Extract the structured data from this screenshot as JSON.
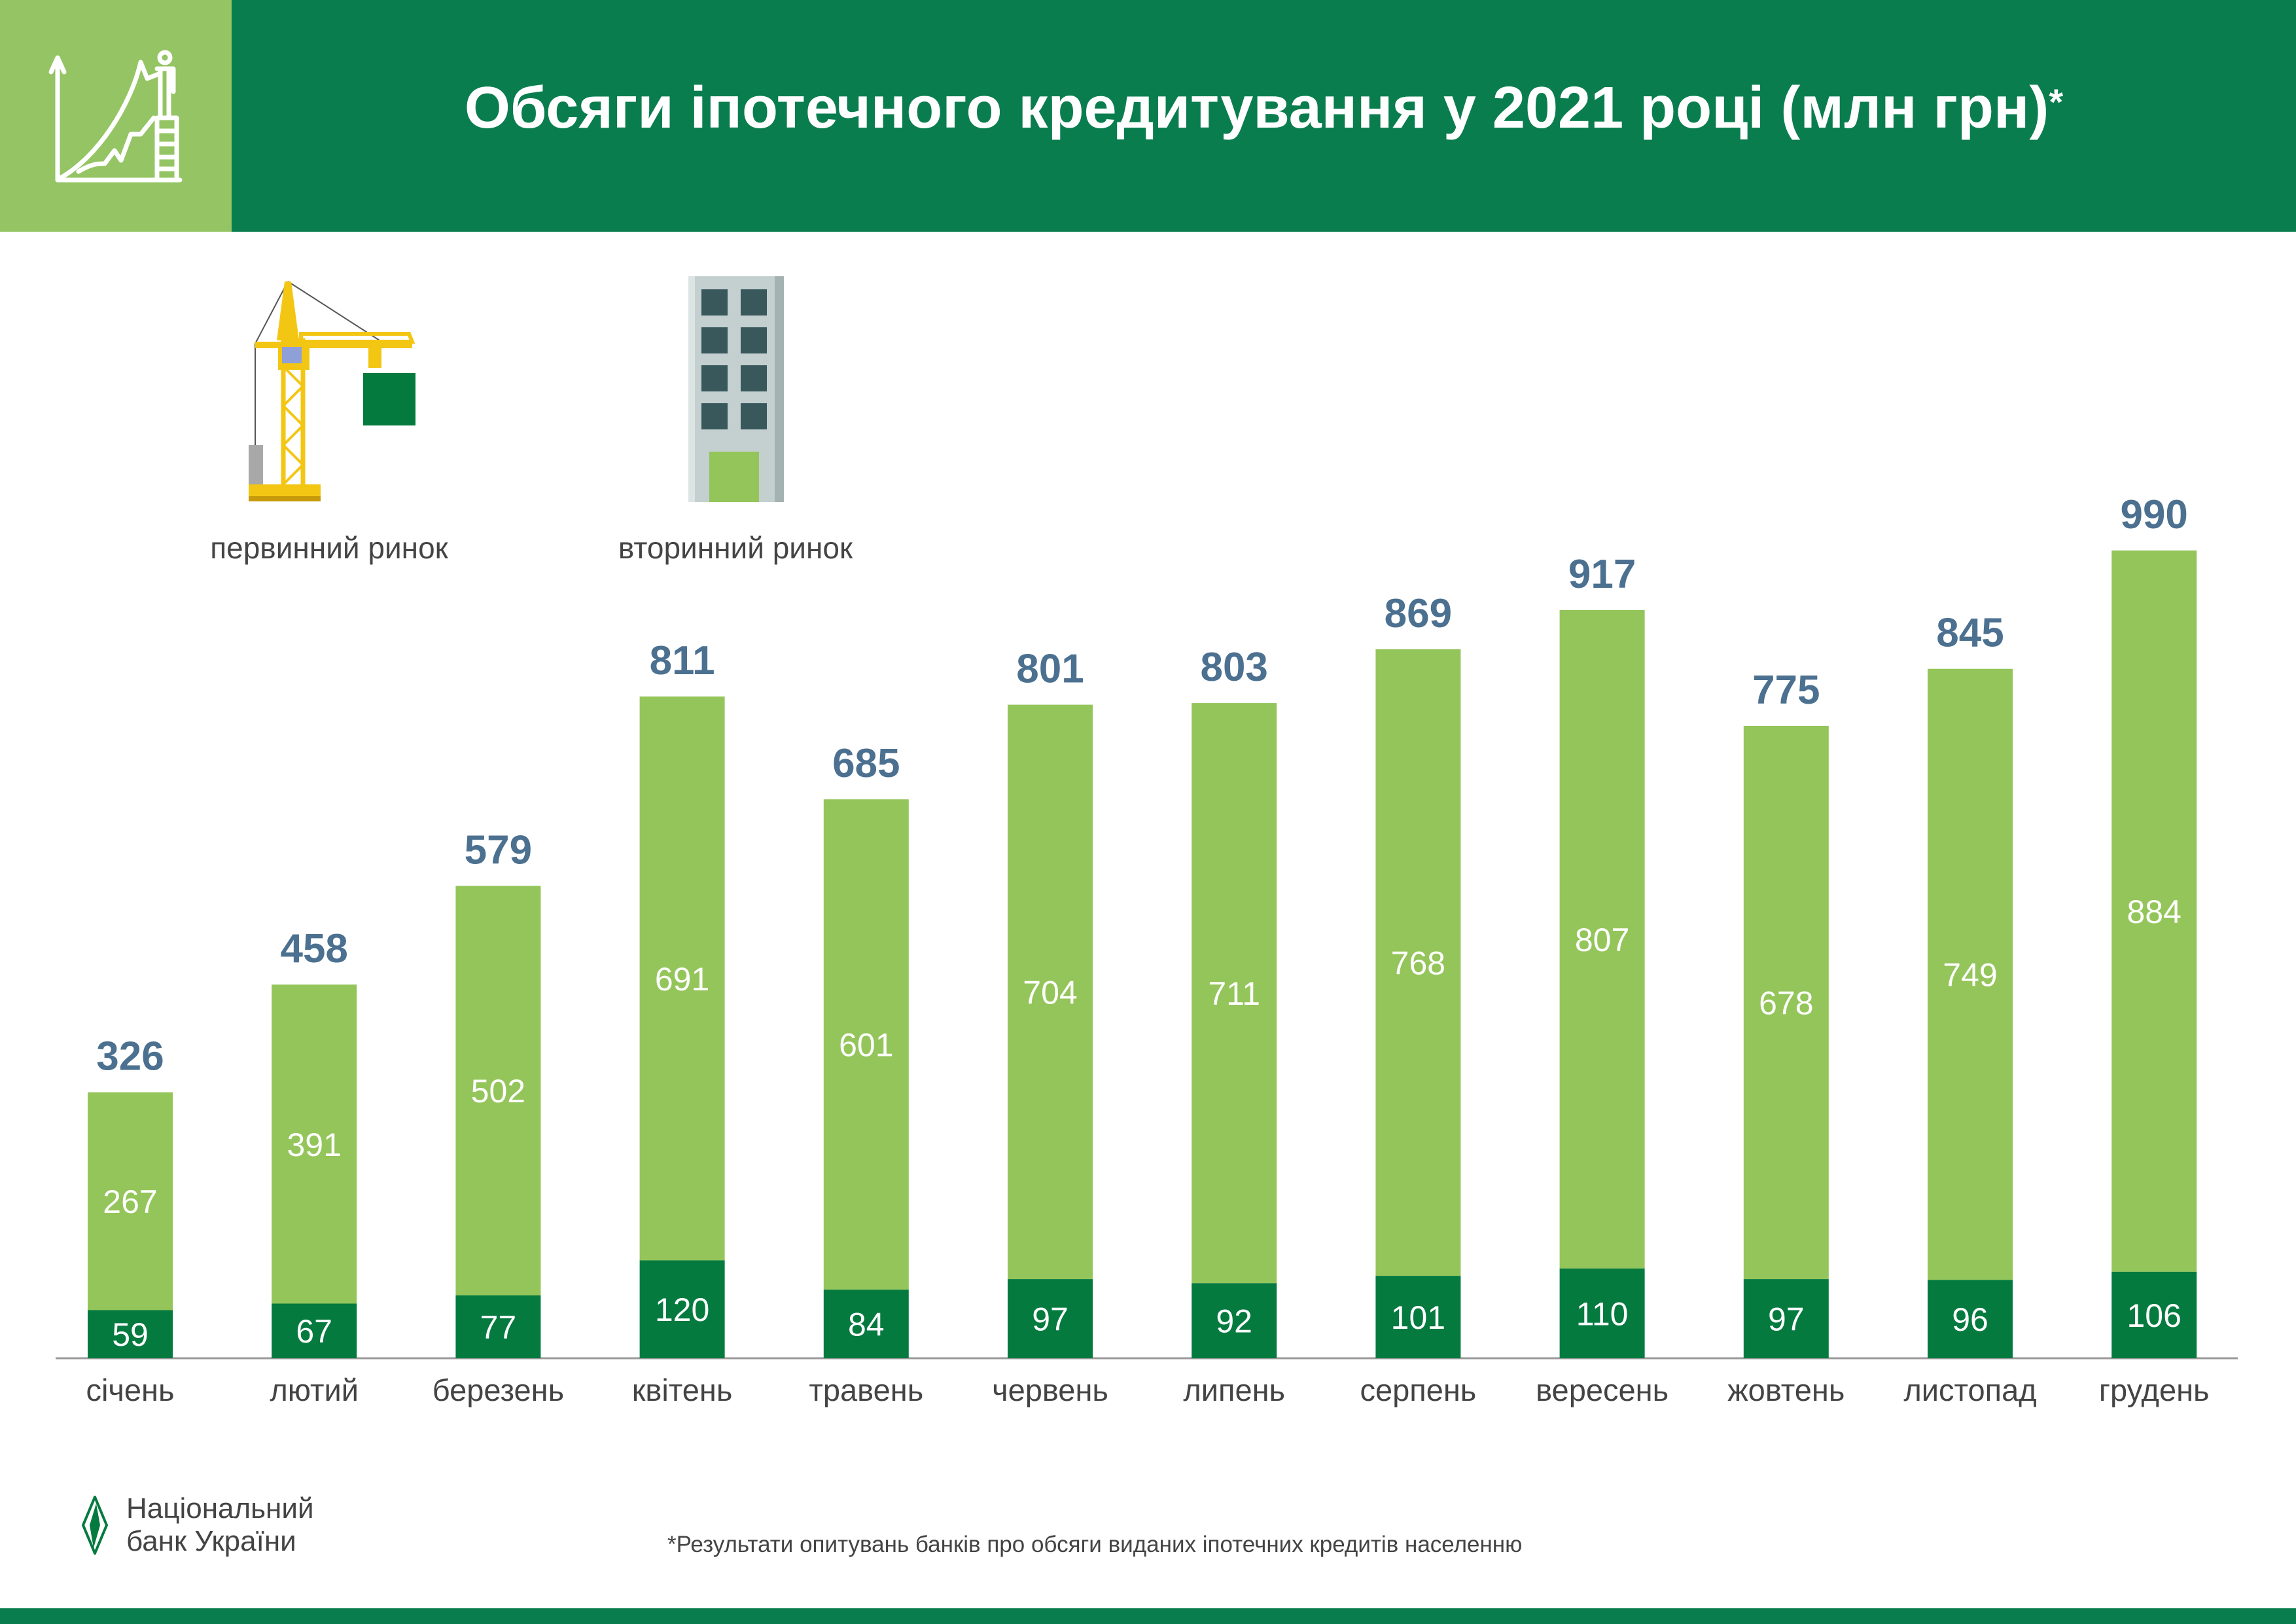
{
  "header": {
    "title": "Обсяги іпотечного кредитування у 2021 році (млн грн)",
    "title_mark": "*"
  },
  "legend": [
    {
      "label": "первинний ринок",
      "icon": "crane-icon",
      "color": "#047a3f"
    },
    {
      "label": "вторинний ринок",
      "icon": "building-icon",
      "color": "#94c55a"
    }
  ],
  "chart_data": {
    "type": "bar",
    "stacked": true,
    "title": "Обсяги іпотечного кредитування у 2021 році (млн грн)",
    "xlabel": "",
    "ylabel": "",
    "ylim": [
      0,
      990
    ],
    "grid": false,
    "legend_position": "top-left",
    "categories": [
      "січень",
      "лютий",
      "березень",
      "квітень",
      "травень",
      "червень",
      "липень",
      "серпень",
      "вересень",
      "жовтень",
      "листопад",
      "грудень"
    ],
    "series": [
      {
        "name": "первинний ринок",
        "color": "#047a3f",
        "values": [
          59,
          67,
          77,
          120,
          84,
          97,
          92,
          101,
          110,
          97,
          96,
          106
        ]
      },
      {
        "name": "вторинний ринок",
        "color": "#94c55a",
        "values": [
          267,
          391,
          502,
          691,
          601,
          704,
          711,
          768,
          807,
          678,
          749,
          884
        ]
      }
    ],
    "totals": [
      326,
      458,
      579,
      811,
      685,
      801,
      803,
      869,
      917,
      775,
      845,
      990
    ],
    "total_label_color": "#4c7090"
  },
  "footer": {
    "note": "*Результати опитувань банків про обсяги виданих іпотечних кредитів населенню",
    "logo_line1": "Національний",
    "logo_line2": "банк України"
  }
}
